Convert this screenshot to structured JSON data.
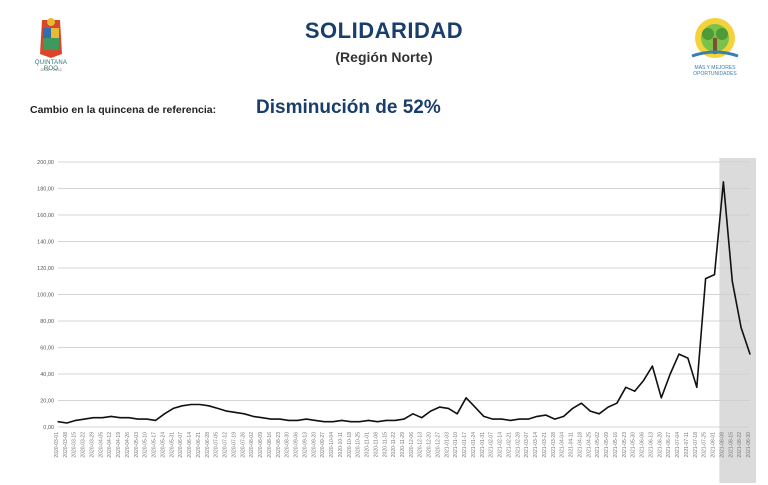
{
  "header": {
    "title": "SOLIDARIDAD",
    "subtitle": "(Región Norte)",
    "ref_label": "Cambio en la quincena de referencia:",
    "ref_value": "Disminución de 52%"
  },
  "logos": {
    "left_caption": "QUINTANA ROO",
    "left_years": "2016 - 2022",
    "right_slogan_1": "MÁS Y MEJORES",
    "right_slogan_2": "OPORTUNIDADES"
  },
  "colors": {
    "title": "#1a3e6b",
    "line": "#111111",
    "grid": "#d4d4d4",
    "highlight": "#cfcfcf"
  },
  "chart_data": {
    "type": "line",
    "title": "",
    "xlabel": "",
    "ylabel": "",
    "ylim": [
      0,
      200
    ],
    "y_ticks": [
      "0,00",
      "20,00",
      "40,00",
      "60,00",
      "80,00",
      "100,00",
      "120,00",
      "140,00",
      "160,00",
      "180,00",
      "200,00"
    ],
    "grid": true,
    "highlight_range": [
      "2021-08-08",
      "2021-08-30"
    ],
    "x_tick_labels": [
      "2020-03-01",
      "2020-03-08",
      "2020-03-15",
      "2020-03-22",
      "2020-03-29",
      "2020-04-05",
      "2020-04-12",
      "2020-04-19",
      "2020-04-26",
      "2020-05-03",
      "2020-05-10",
      "2020-05-17",
      "2020-05-24",
      "2020-05-31",
      "2020-06-07",
      "2020-06-14",
      "2020-06-21",
      "2020-06-28",
      "2020-07-05",
      "2020-07-12",
      "2020-07-19",
      "2020-07-26",
      "2020-08-02",
      "2020-08-09",
      "2020-08-16",
      "2020-08-23",
      "2020-08-30",
      "2020-09-06",
      "2020-09-13",
      "2020-09-20",
      "2020-09-27",
      "2020-10-04",
      "2020-10-11",
      "2020-10-18",
      "2020-10-25",
      "2020-11-01",
      "2020-11-08",
      "2020-11-15",
      "2020-11-22",
      "2020-11-29",
      "2020-12-06",
      "2020-12-13",
      "2020-12-20",
      "2020-12-27",
      "2021-01-03",
      "2021-01-10",
      "2021-01-17",
      "2021-01-24",
      "2021-01-31",
      "2021-02-07",
      "2021-02-14",
      "2021-02-21",
      "2021-02-28",
      "2021-03-07",
      "2021-03-14",
      "2021-03-21",
      "2021-03-28",
      "2021-04-04",
      "2021-04-11",
      "2021-04-18",
      "2021-04-25",
      "2021-05-02",
      "2021-05-09",
      "2021-05-16",
      "2021-05-23",
      "2021-05-30",
      "2021-06-06",
      "2021-06-13",
      "2021-06-20",
      "2021-06-27",
      "2021-07-04",
      "2021-07-11",
      "2021-07-18",
      "2021-07-25",
      "2021-08-01",
      "2021-08-08",
      "2021-08-15",
      "2021-08-22",
      "2021-08-30"
    ],
    "series": [
      {
        "values": [
          4,
          3,
          5,
          6,
          7,
          7,
          8,
          7,
          7,
          6,
          6,
          5,
          10,
          14,
          16,
          17,
          17,
          16,
          14,
          12,
          11,
          10,
          8,
          7,
          6,
          6,
          5,
          5,
          6,
          5,
          4,
          4,
          5,
          4,
          4,
          5,
          4,
          5,
          5,
          6,
          10,
          7,
          12,
          15,
          14,
          10,
          22,
          15,
          8,
          6,
          6,
          5,
          6,
          6,
          8,
          9,
          6,
          8,
          14,
          18,
          12,
          10,
          15,
          18,
          30,
          27,
          35,
          46,
          22,
          40,
          55,
          52,
          30,
          112,
          115,
          185,
          110,
          75,
          55
        ]
      }
    ]
  }
}
